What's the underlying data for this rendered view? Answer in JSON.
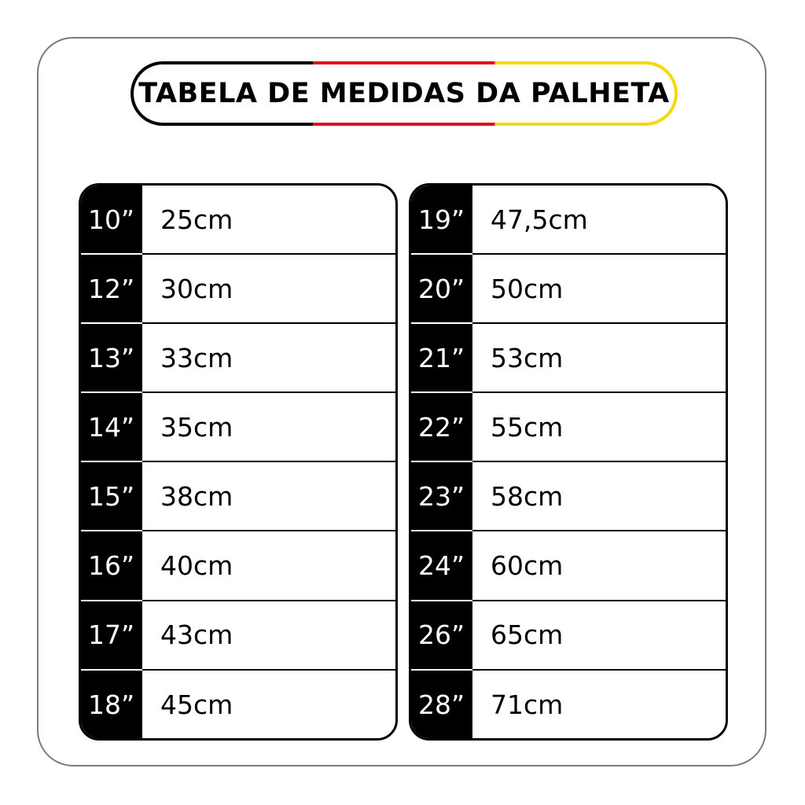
{
  "title": "TABELA DE MEDIDAS DA PALHETA",
  "colors": {
    "stripe": [
      "#000000",
      "#e3101b",
      "#f5d90a"
    ]
  },
  "left": [
    {
      "inch": "10”",
      "cm": "25cm"
    },
    {
      "inch": "12”",
      "cm": "30cm"
    },
    {
      "inch": "13”",
      "cm": "33cm"
    },
    {
      "inch": "14”",
      "cm": "35cm"
    },
    {
      "inch": "15”",
      "cm": "38cm"
    },
    {
      "inch": "16”",
      "cm": "40cm"
    },
    {
      "inch": "17”",
      "cm": "43cm"
    },
    {
      "inch": "18”",
      "cm": "45cm"
    }
  ],
  "right": [
    {
      "inch": "19”",
      "cm": "47,5cm"
    },
    {
      "inch": "20”",
      "cm": "50cm"
    },
    {
      "inch": "21”",
      "cm": "53cm"
    },
    {
      "inch": "22”",
      "cm": "55cm"
    },
    {
      "inch": "23”",
      "cm": "58cm"
    },
    {
      "inch": "24”",
      "cm": "60cm"
    },
    {
      "inch": "26”",
      "cm": "65cm"
    },
    {
      "inch": "28”",
      "cm": "71cm"
    }
  ]
}
